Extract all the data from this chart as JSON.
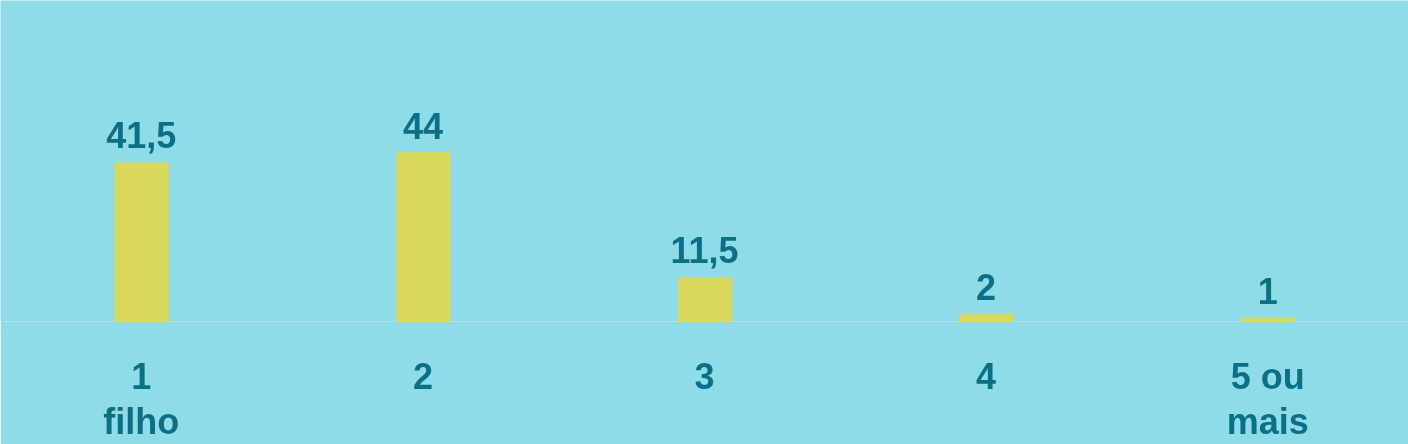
{
  "chart_data": {
    "type": "bar",
    "categories": [
      "1 filho",
      "2",
      "3",
      "4",
      "5 ou mais"
    ],
    "values": [
      41.5,
      44,
      11.5,
      2,
      1
    ],
    "value_labels": [
      "41,5",
      "44",
      "11,5",
      "2",
      "1"
    ],
    "color": "#d8d85c"
  }
}
